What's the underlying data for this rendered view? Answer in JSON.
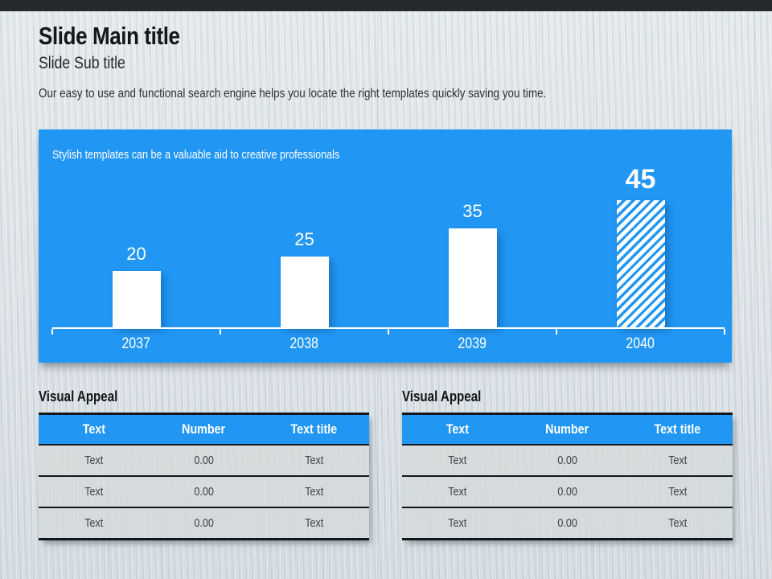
{
  "slide": {
    "title": "Slide Main title",
    "subtitle": "Slide Sub title",
    "body": "Our easy to use and functional search engine helps you locate the right templates quickly saving you time."
  },
  "chart_data": {
    "type": "bar",
    "title": "Stylish templates can be a valuable aid to creative professionals",
    "categories": [
      "2037",
      "2038",
      "2039",
      "2040"
    ],
    "values": [
      20,
      25,
      35,
      45
    ],
    "xlabel": "",
    "ylabel": "",
    "ylim": [
      0,
      50
    ],
    "grid": false,
    "legend": "none",
    "highlight_index": 3,
    "highlight_style": "diagonal-stripes",
    "bar_color": "#ffffff",
    "panel_color": "#2196f3",
    "label_color": "#ffffff"
  },
  "tables": [
    {
      "title": "Visual Appeal",
      "headers": [
        "Text",
        "Number",
        "Text title"
      ],
      "rows": [
        [
          "Text",
          "0.00",
          "Text"
        ],
        [
          "Text",
          "0.00",
          "Text"
        ],
        [
          "Text",
          "0.00",
          "Text"
        ]
      ]
    },
    {
      "title": "Visual Appeal",
      "headers": [
        "Text",
        "Number",
        "Text title"
      ],
      "rows": [
        [
          "Text",
          "0.00",
          "Text"
        ],
        [
          "Text",
          "0.00",
          "Text"
        ],
        [
          "Text",
          "0.00",
          "Text"
        ]
      ]
    }
  ],
  "colors": {
    "accent": "#2196f3",
    "frame_top": "#26292b",
    "frame_bottom": "#465056",
    "background": "#dce3e7",
    "table_border": "#141719"
  }
}
